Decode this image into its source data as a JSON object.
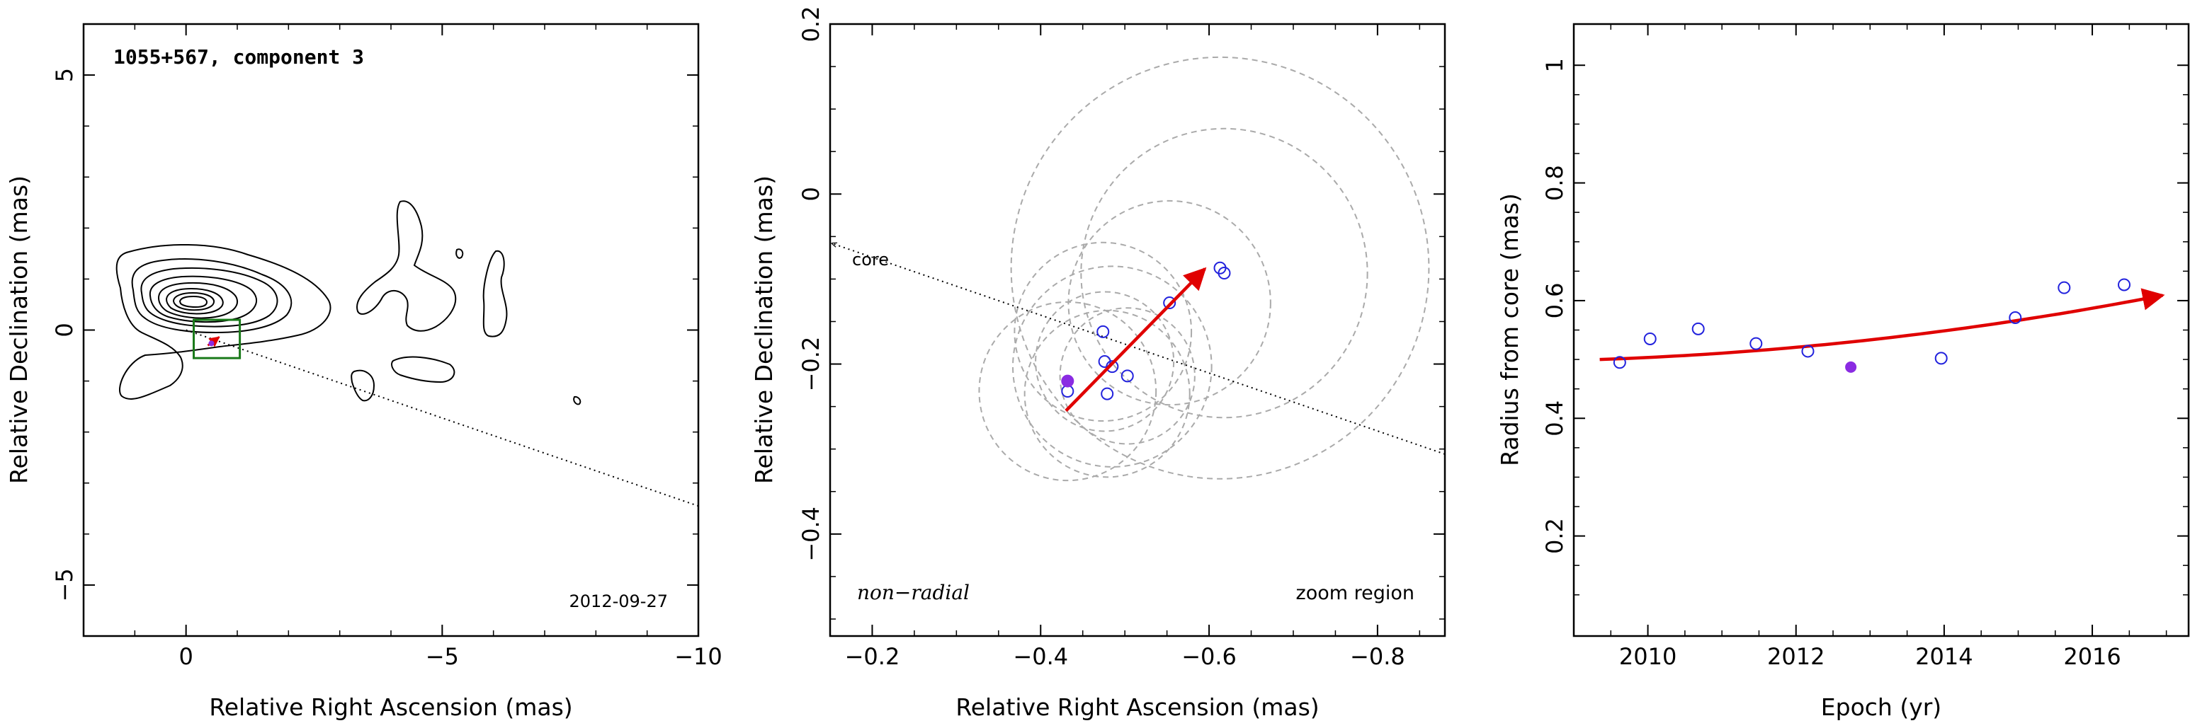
{
  "chart_data": [
    {
      "type": "contour",
      "annotation": "1055+567, component 3",
      "date_label": "2012-09-27",
      "xlabel": "Relative Right Ascension (mas)",
      "ylabel": "Relative Declination (mas)",
      "xlim": [
        2,
        -10
      ],
      "ylim": [
        -6,
        6
      ],
      "xticks": [
        0,
        -5,
        -10
      ],
      "xtick_labels": [
        "0",
        "−5",
        "−10"
      ],
      "yticks": [
        -5,
        0,
        5
      ],
      "ytick_labels": [
        "−5",
        "0",
        "5"
      ],
      "component_position": [
        -0.55,
        -0.22
      ],
      "zoom_box": {
        "x": [
          -0.15,
          -1.05
        ],
        "y": [
          -0.55,
          0.2
        ]
      },
      "core_direction_line": {
        "from": [
          0,
          0
        ],
        "to": [
          -10,
          -3.45
        ]
      },
      "colors": {
        "contour": "#000000",
        "zoom_box": "#1a7a1a",
        "vector": "#e00000",
        "marker": "#8a2be2"
      }
    },
    {
      "type": "scatter",
      "annotation_left": "non−radial",
      "annotation_right": "zoom region",
      "core_label": "core",
      "xlabel": "Relative Right Ascension (mas)",
      "ylabel": "Relative Declination (mas)",
      "xlim": [
        -0.15,
        -0.88
      ],
      "ylim": [
        -0.52,
        0.2
      ],
      "xticks": [
        -0.2,
        -0.4,
        -0.6,
        -0.8
      ],
      "xtick_labels": [
        "−0.2",
        "−0.4",
        "−0.6",
        "−0.8"
      ],
      "yticks": [
        -0.4,
        -0.2,
        0,
        0.2
      ],
      "ytick_labels": [
        "−0.4",
        "−0.2",
        "0",
        "0.2"
      ],
      "points": [
        {
          "x": -0.432,
          "y": -0.232
        },
        {
          "x": -0.474,
          "y": -0.162
        },
        {
          "x": -0.476,
          "y": -0.197
        },
        {
          "x": -0.479,
          "y": -0.235
        },
        {
          "x": -0.485,
          "y": -0.203
        },
        {
          "x": -0.503,
          "y": -0.214
        },
        {
          "x": -0.553,
          "y": -0.128
        },
        {
          "x": -0.613,
          "y": -0.087
        },
        {
          "x": -0.618,
          "y": -0.093
        }
      ],
      "highlight_point": {
        "x": -0.432,
        "y": -0.22
      },
      "uncertainty_circles": [
        {
          "x": -0.432,
          "y": -0.232,
          "r": 0.105
        },
        {
          "x": -0.474,
          "y": -0.162,
          "r": 0.105
        },
        {
          "x": -0.476,
          "y": -0.197,
          "r": 0.082
        },
        {
          "x": -0.479,
          "y": -0.235,
          "r": 0.098
        },
        {
          "x": -0.485,
          "y": -0.203,
          "r": 0.118
        },
        {
          "x": -0.503,
          "y": -0.214,
          "r": 0.08
        },
        {
          "x": -0.553,
          "y": -0.128,
          "r": 0.12
        },
        {
          "x": -0.613,
          "y": -0.087,
          "r": 0.248
        },
        {
          "x": -0.618,
          "y": -0.093,
          "r": 0.17
        }
      ],
      "vector": {
        "from": [
          -0.43,
          -0.255
        ],
        "to": [
          -0.595,
          -0.088
        ]
      },
      "core_line": {
        "from": [
          -0.88,
          -0.306
        ],
        "to": [
          -0.152,
          -0.058
        ]
      },
      "colors": {
        "points": "#2222dd",
        "highlight": "#8a2be2",
        "circles": "#aaaaaa",
        "vector": "#e00000"
      }
    },
    {
      "type": "scatter",
      "xlabel": "Epoch (yr)",
      "ylabel": "Radius from core (mas)",
      "xlim": [
        2009.0,
        2017.3
      ],
      "ylim": [
        0.03,
        1.07
      ],
      "xticks": [
        2010,
        2012,
        2014,
        2016
      ],
      "xtick_labels": [
        "2010",
        "2012",
        "2014",
        "2016"
      ],
      "yticks": [
        0.2,
        0.4,
        0.6,
        0.8,
        1.0
      ],
      "ytick_labels": [
        "0.2",
        "0.4",
        "0.6",
        "0.8",
        "1"
      ],
      "points": [
        {
          "x": 2009.62,
          "y": 0.495
        },
        {
          "x": 2010.03,
          "y": 0.535
        },
        {
          "x": 2010.68,
          "y": 0.552
        },
        {
          "x": 2011.46,
          "y": 0.527
        },
        {
          "x": 2012.16,
          "y": 0.514
        },
        {
          "x": 2013.96,
          "y": 0.502
        },
        {
          "x": 2014.96,
          "y": 0.571
        },
        {
          "x": 2015.62,
          "y": 0.622
        },
        {
          "x": 2016.43,
          "y": 0.627
        }
      ],
      "highlight_point": {
        "x": 2012.74,
        "y": 0.487
      },
      "fit_curve": {
        "x_start": 2009.35,
        "x_end": 2016.95,
        "y_start": 0.5,
        "y_end": 0.609,
        "curvature": 0.7
      },
      "colors": {
        "points": "#2222dd",
        "highlight": "#8a2be2",
        "fit": "#e00000"
      }
    }
  ]
}
